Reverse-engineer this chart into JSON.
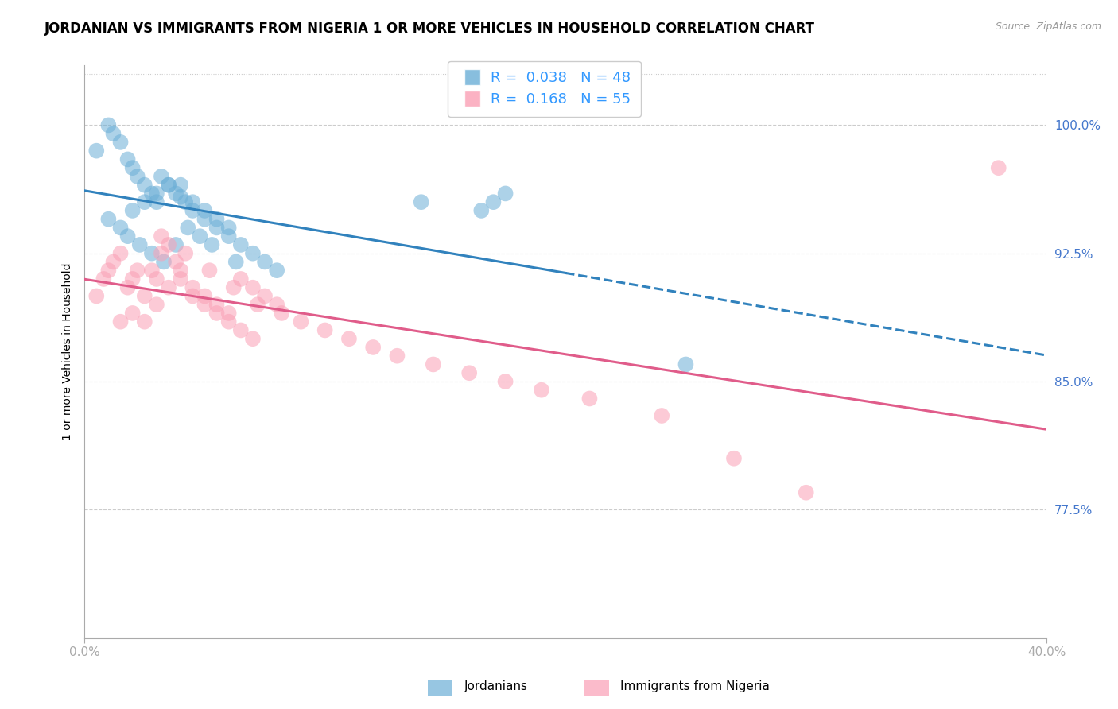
{
  "title": "JORDANIAN VS IMMIGRANTS FROM NIGERIA 1 OR MORE VEHICLES IN HOUSEHOLD CORRELATION CHART",
  "source": "Source: ZipAtlas.com",
  "xmin": 0.0,
  "xmax": 40.0,
  "ymin": 70.0,
  "ymax": 103.5,
  "ylabel_tick_vals": [
    77.5,
    85.0,
    92.5,
    100.0
  ],
  "ylabel_ticks": [
    "77.5%",
    "85.0%",
    "92.5%",
    "100.0%"
  ],
  "xtick_vals": [
    0.0,
    40.0
  ],
  "xtick_labels": [
    "0.0%",
    "40.0%"
  ],
  "jordanians_R": 0.038,
  "jordanians_N": 48,
  "nigeria_R": 0.168,
  "nigeria_N": 55,
  "blue_color": "#6baed6",
  "pink_color": "#fa9fb5",
  "blue_line_color": "#3182bd",
  "pink_line_color": "#e05c8a",
  "title_fontsize": 12,
  "tick_fontsize": 11,
  "axis_label_fontsize": 10,
  "jordanians_x": [
    0.5,
    1.0,
    1.2,
    1.5,
    1.8,
    2.0,
    2.2,
    2.5,
    2.8,
    3.0,
    3.2,
    3.5,
    3.8,
    4.0,
    4.2,
    4.5,
    5.0,
    5.5,
    6.0,
    6.5,
    7.0,
    7.5,
    8.0,
    1.0,
    1.5,
    2.0,
    2.5,
    3.0,
    3.5,
    4.0,
    4.5,
    5.0,
    5.5,
    6.0,
    1.8,
    2.3,
    2.8,
    3.3,
    3.8,
    4.3,
    4.8,
    5.3,
    6.3,
    14.0,
    16.5,
    17.0,
    17.5,
    25.0
  ],
  "jordanians_y": [
    98.5,
    100.0,
    99.5,
    99.0,
    98.0,
    97.5,
    97.0,
    96.5,
    96.0,
    95.5,
    97.0,
    96.5,
    96.0,
    95.8,
    95.5,
    95.0,
    94.5,
    94.0,
    93.5,
    93.0,
    92.5,
    92.0,
    91.5,
    94.5,
    94.0,
    95.0,
    95.5,
    96.0,
    96.5,
    96.5,
    95.5,
    95.0,
    94.5,
    94.0,
    93.5,
    93.0,
    92.5,
    92.0,
    93.0,
    94.0,
    93.5,
    93.0,
    92.0,
    95.5,
    95.0,
    95.5,
    96.0,
    86.0
  ],
  "nigeria_x": [
    0.5,
    0.8,
    1.0,
    1.2,
    1.5,
    1.8,
    2.0,
    2.2,
    2.5,
    2.8,
    3.0,
    3.2,
    3.5,
    3.8,
    4.0,
    4.5,
    5.0,
    5.5,
    6.0,
    6.5,
    7.0,
    7.5,
    8.0,
    1.5,
    2.0,
    2.5,
    3.0,
    3.5,
    4.0,
    4.5,
    5.0,
    5.5,
    6.0,
    6.5,
    7.0,
    3.2,
    4.2,
    5.2,
    6.2,
    7.2,
    8.2,
    9.0,
    10.0,
    11.0,
    12.0,
    13.0,
    14.5,
    16.0,
    17.5,
    19.0,
    21.0,
    24.0,
    27.0,
    30.0,
    38.0
  ],
  "nigeria_y": [
    90.0,
    91.0,
    91.5,
    92.0,
    92.5,
    90.5,
    91.0,
    91.5,
    90.0,
    91.5,
    91.0,
    92.5,
    93.0,
    92.0,
    91.5,
    90.5,
    90.0,
    89.5,
    89.0,
    91.0,
    90.5,
    90.0,
    89.5,
    88.5,
    89.0,
    88.5,
    89.5,
    90.5,
    91.0,
    90.0,
    89.5,
    89.0,
    88.5,
    88.0,
    87.5,
    93.5,
    92.5,
    91.5,
    90.5,
    89.5,
    89.0,
    88.5,
    88.0,
    87.5,
    87.0,
    86.5,
    86.0,
    85.5,
    85.0,
    84.5,
    84.0,
    83.0,
    80.5,
    78.5,
    97.5
  ]
}
